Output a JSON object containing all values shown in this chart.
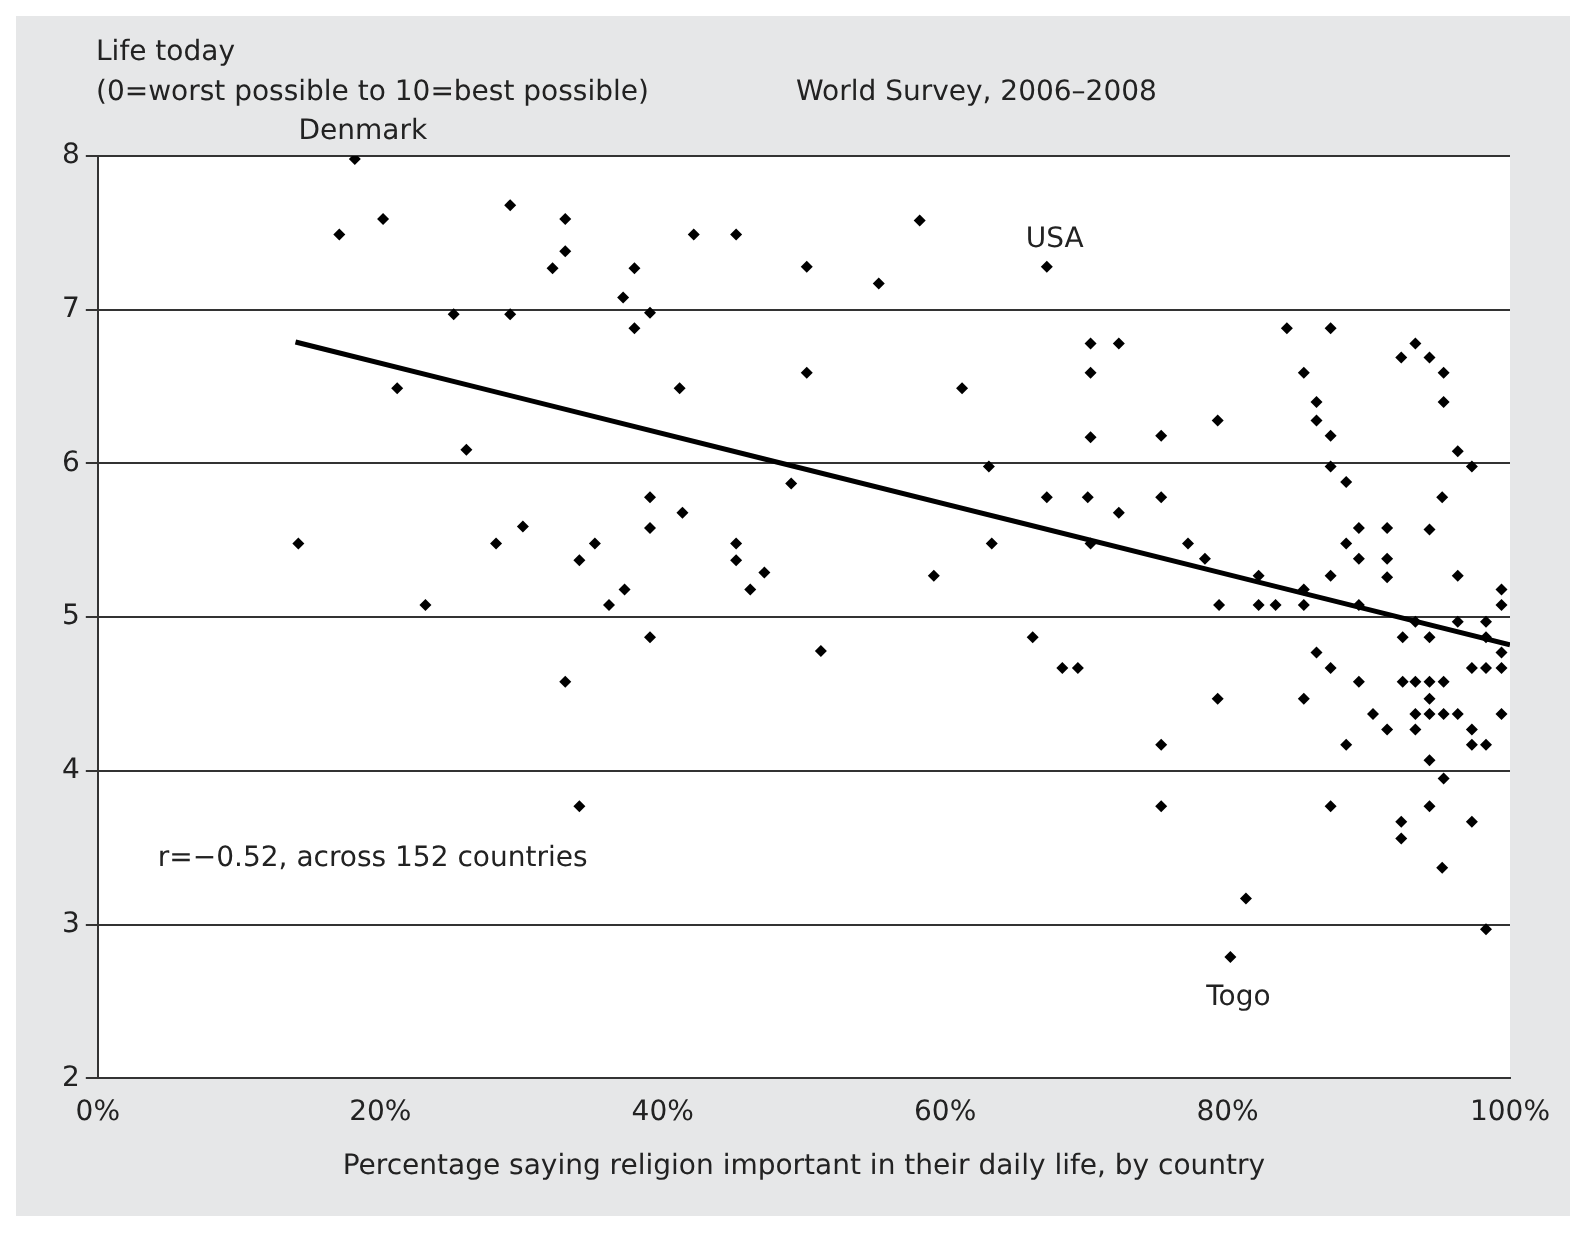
{
  "chart_data": {
    "type": "scatter",
    "title": "World Survey, 2006–2008",
    "ylabel": "Life today\n(0=worst possible to 10=best possible)",
    "xlabel": "Percentage saying religion important in their daily life, by country",
    "xlim": [
      0,
      100
    ],
    "xticks": [
      {
        "value": 0,
        "label": "0%"
      },
      {
        "value": 20,
        "label": "20%"
      },
      {
        "value": 40,
        "label": "40%"
      },
      {
        "value": 60,
        "label": "60%"
      },
      {
        "value": 80,
        "label": "80%"
      },
      {
        "value": 100,
        "label": "100%"
      }
    ],
    "ylim": [
      2,
      8
    ],
    "yticks": [
      2,
      3,
      4,
      5,
      6,
      7,
      8
    ],
    "grid": "y",
    "legend": false,
    "annotations": [
      {
        "text": "Denmark",
        "x": 18.2,
        "y": 7.98
      },
      {
        "text": "USA",
        "x": 67.2,
        "y": 7.28
      },
      {
        "text": "Togo",
        "x": 80.2,
        "y": 2.79
      },
      "r=−0.52, across 152 countries"
    ],
    "series": [
      {
        "marker": "diamond",
        "color": "#000000",
        "x": [
          18.2,
          17.1,
          20.2,
          29.2,
          33.1,
          33.1,
          32.2,
          25.2,
          29.2,
          21.2,
          26.1,
          14.2,
          28.2,
          30.1,
          23.2,
          33.1,
          34.1,
          34.1,
          42.2,
          45.2,
          38.0,
          37.2,
          39.1,
          38.0,
          50.2,
          55.3,
          58.2,
          67.2,
          50.2,
          41.2,
          61.2,
          63.1,
          67.2,
          39.1,
          41.4,
          39.1,
          49.1,
          35.2,
          45.2,
          45.2,
          47.2,
          46.2,
          37.3,
          36.2,
          59.2,
          63.3,
          39.1,
          51.2,
          66.2,
          70.3,
          72.3,
          70.3,
          70.3,
          70.1,
          72.3,
          70.3,
          68.3,
          69.4,
          75.3,
          75.3,
          77.2,
          78.4,
          79.3,
          79.4,
          79.3,
          75.3,
          75.3,
          81.3,
          80.2,
          82.2,
          82.2,
          83.4,
          84.2,
          87.3,
          85.4,
          86.3,
          86.3,
          87.3,
          87.3,
          88.4,
          89.3,
          88.4,
          89.3,
          87.3,
          85.4,
          85.4,
          89.3,
          86.3,
          87.3,
          89.3,
          85.4,
          88.4,
          87.3,
          91.3,
          91.3,
          91.3,
          92.3,
          93.3,
          94.3,
          95.3,
          95.3,
          96.3,
          97.3,
          95.2,
          94.3,
          96.3,
          92.4,
          93.3,
          94.3,
          96.3,
          98.3,
          98.3,
          99.4,
          99.4,
          99.4,
          99.4,
          98.3,
          97.3,
          92.4,
          93.3,
          94.3,
          95.3,
          94.3,
          90.3,
          93.3,
          94.3,
          95.3,
          96.3,
          99.4,
          91.3,
          93.3,
          97.3,
          97.3,
          98.3,
          94.3,
          95.3,
          94.3,
          92.3,
          92.3,
          97.3,
          95.2,
          98.3
        ],
        "values": [
          7.98,
          7.49,
          7.59,
          7.68,
          7.59,
          7.38,
          7.27,
          6.97,
          6.97,
          6.49,
          6.09,
          5.48,
          5.48,
          5.59,
          5.08,
          4.58,
          5.37,
          3.77,
          7.49,
          7.49,
          7.27,
          7.08,
          6.98,
          6.88,
          7.28,
          7.17,
          7.58,
          7.28,
          6.59,
          6.49,
          6.49,
          5.98,
          5.78,
          5.78,
          5.68,
          5.58,
          5.87,
          5.48,
          5.48,
          5.37,
          5.29,
          5.18,
          5.18,
          5.08,
          5.27,
          5.48,
          4.87,
          4.78,
          4.87,
          6.78,
          6.78,
          6.59,
          6.17,
          5.78,
          5.68,
          5.48,
          4.67,
          4.67,
          6.18,
          5.78,
          5.48,
          5.38,
          6.28,
          5.08,
          4.47,
          4.17,
          3.77,
          3.17,
          2.79,
          5.27,
          5.08,
          5.08,
          6.88,
          6.88,
          6.59,
          6.4,
          6.28,
          6.18,
          5.98,
          5.88,
          5.58,
          5.48,
          5.38,
          5.27,
          5.18,
          5.08,
          5.08,
          4.77,
          4.67,
          4.58,
          4.47,
          4.17,
          3.77,
          5.58,
          5.38,
          5.26,
          6.69,
          6.78,
          6.69,
          6.59,
          6.4,
          6.08,
          5.98,
          5.78,
          5.57,
          5.27,
          4.87,
          4.97,
          4.87,
          4.97,
          4.97,
          4.87,
          5.18,
          5.08,
          4.77,
          4.67,
          4.67,
          4.67,
          4.58,
          4.58,
          4.58,
          4.58,
          4.47,
          4.37,
          4.37,
          4.37,
          4.37,
          4.37,
          4.37,
          4.27,
          4.27,
          4.27,
          4.17,
          4.17,
          4.07,
          3.95,
          3.77,
          3.67,
          3.56,
          3.67,
          3.37,
          2.97
        ]
      },
      {
        "type": "line",
        "marker": "none",
        "color": "#000000",
        "x": [
          14,
          100
        ],
        "values": [
          6.79,
          4.82
        ]
      }
    ]
  }
}
